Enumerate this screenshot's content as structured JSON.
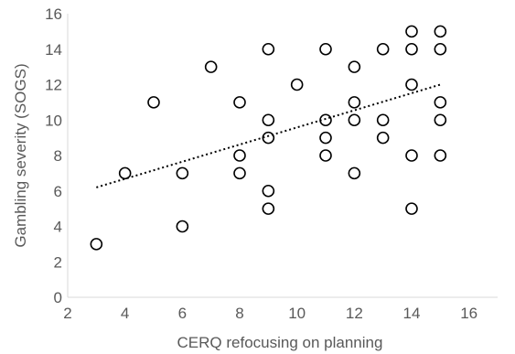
{
  "chart_data": {
    "type": "scatter",
    "xlabel": "CERQ refocusing on planning",
    "ylabel": "Gambling severity (SOGS)",
    "xlim": [
      2,
      17
    ],
    "ylim": [
      0,
      16
    ],
    "xticks": [
      2,
      4,
      6,
      8,
      10,
      12,
      14,
      16
    ],
    "yticks": [
      0,
      2,
      4,
      6,
      8,
      10,
      12,
      14,
      16
    ],
    "grid": false,
    "marker": "open-circle",
    "colors": {
      "marker": "#000000",
      "axis": "#d9d9d9",
      "text": "#595959",
      "trendline": "#000000"
    },
    "points": [
      {
        "x": 3,
        "y": 3
      },
      {
        "x": 4,
        "y": 7
      },
      {
        "x": 5,
        "y": 11
      },
      {
        "x": 6,
        "y": 7
      },
      {
        "x": 6,
        "y": 4
      },
      {
        "x": 7,
        "y": 13
      },
      {
        "x": 8,
        "y": 11
      },
      {
        "x": 8,
        "y": 8
      },
      {
        "x": 8,
        "y": 7
      },
      {
        "x": 9,
        "y": 14
      },
      {
        "x": 9,
        "y": 10
      },
      {
        "x": 9,
        "y": 9
      },
      {
        "x": 9,
        "y": 6
      },
      {
        "x": 9,
        "y": 5
      },
      {
        "x": 10,
        "y": 12
      },
      {
        "x": 11,
        "y": 14
      },
      {
        "x": 11,
        "y": 10
      },
      {
        "x": 11,
        "y": 9
      },
      {
        "x": 11,
        "y": 8
      },
      {
        "x": 12,
        "y": 13
      },
      {
        "x": 12,
        "y": 11
      },
      {
        "x": 12,
        "y": 10
      },
      {
        "x": 12,
        "y": 7
      },
      {
        "x": 13,
        "y": 14
      },
      {
        "x": 13,
        "y": 10
      },
      {
        "x": 13,
        "y": 9
      },
      {
        "x": 14,
        "y": 15
      },
      {
        "x": 14,
        "y": 14
      },
      {
        "x": 14,
        "y": 12
      },
      {
        "x": 14,
        "y": 8
      },
      {
        "x": 14,
        "y": 5
      },
      {
        "x": 15,
        "y": 15
      },
      {
        "x": 15,
        "y": 14
      },
      {
        "x": 15,
        "y": 11
      },
      {
        "x": 15,
        "y": 10
      },
      {
        "x": 15,
        "y": 8
      }
    ],
    "trendline": {
      "type": "linear",
      "style": "dotted",
      "x_start": 3,
      "y_start": 6.2,
      "x_end": 15,
      "y_end": 12.0
    }
  }
}
